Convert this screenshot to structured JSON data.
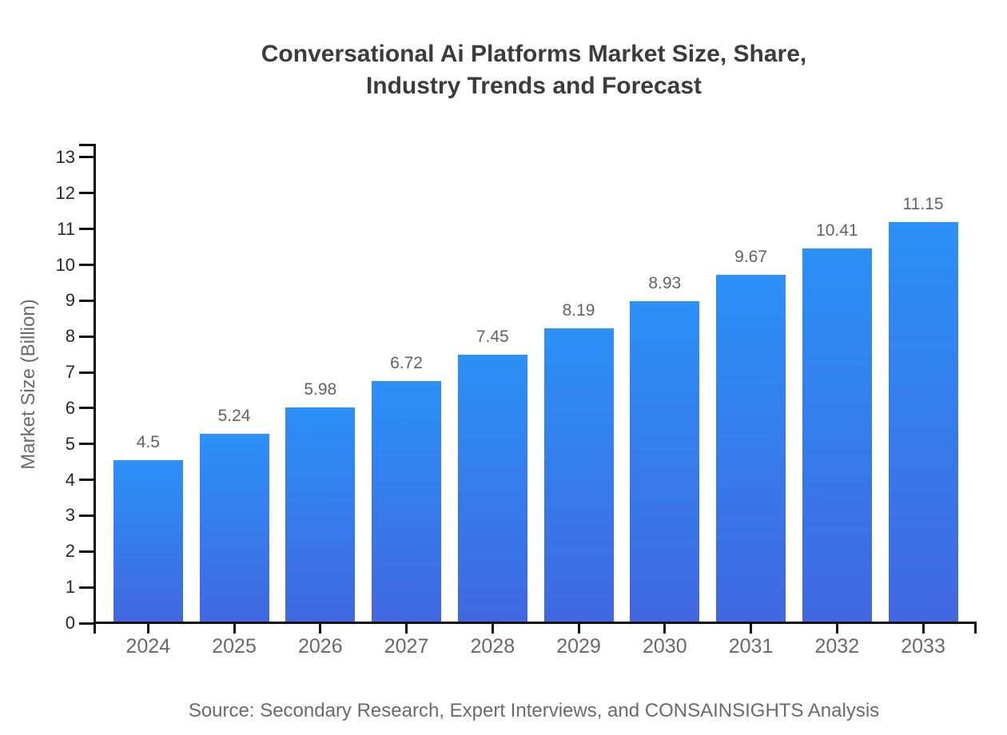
{
  "chart_data": {
    "type": "bar",
    "title_lines": [
      "Conversational Ai Platforms Market Size, Share,",
      "Industry Trends and Forecast"
    ],
    "ylabel": "Market Size (Billion)",
    "xlabel": "",
    "categories": [
      "2024",
      "2025",
      "2026",
      "2027",
      "2028",
      "2029",
      "2030",
      "2031",
      "2032",
      "2033"
    ],
    "values": [
      4.5,
      5.24,
      5.98,
      6.72,
      7.45,
      8.19,
      8.93,
      9.67,
      10.41,
      11.15
    ],
    "value_labels": [
      "4.5",
      "5.24",
      "5.98",
      "6.72",
      "7.45",
      "8.19",
      "8.93",
      "9.67",
      "10.41",
      "11.15"
    ],
    "ylim": [
      0,
      13
    ],
    "yticks": [
      0,
      1,
      2,
      3,
      4,
      5,
      6,
      7,
      8,
      9,
      10,
      11,
      12,
      13
    ],
    "grid": false,
    "legend": "none",
    "source": "Source: Secondary Research, Expert Interviews, and CONSAINSIGHTS Analysis",
    "colors": {
      "bar_gradient_top": "#2B90F7",
      "bar_gradient_bottom": "#4068E0",
      "axis": "#111111",
      "title_text": "#3C3C3C",
      "ytick_text": "#282828",
      "xtick_text": "#696969",
      "value_label_text": "#636363",
      "source_text": "#6B6B6B"
    }
  }
}
